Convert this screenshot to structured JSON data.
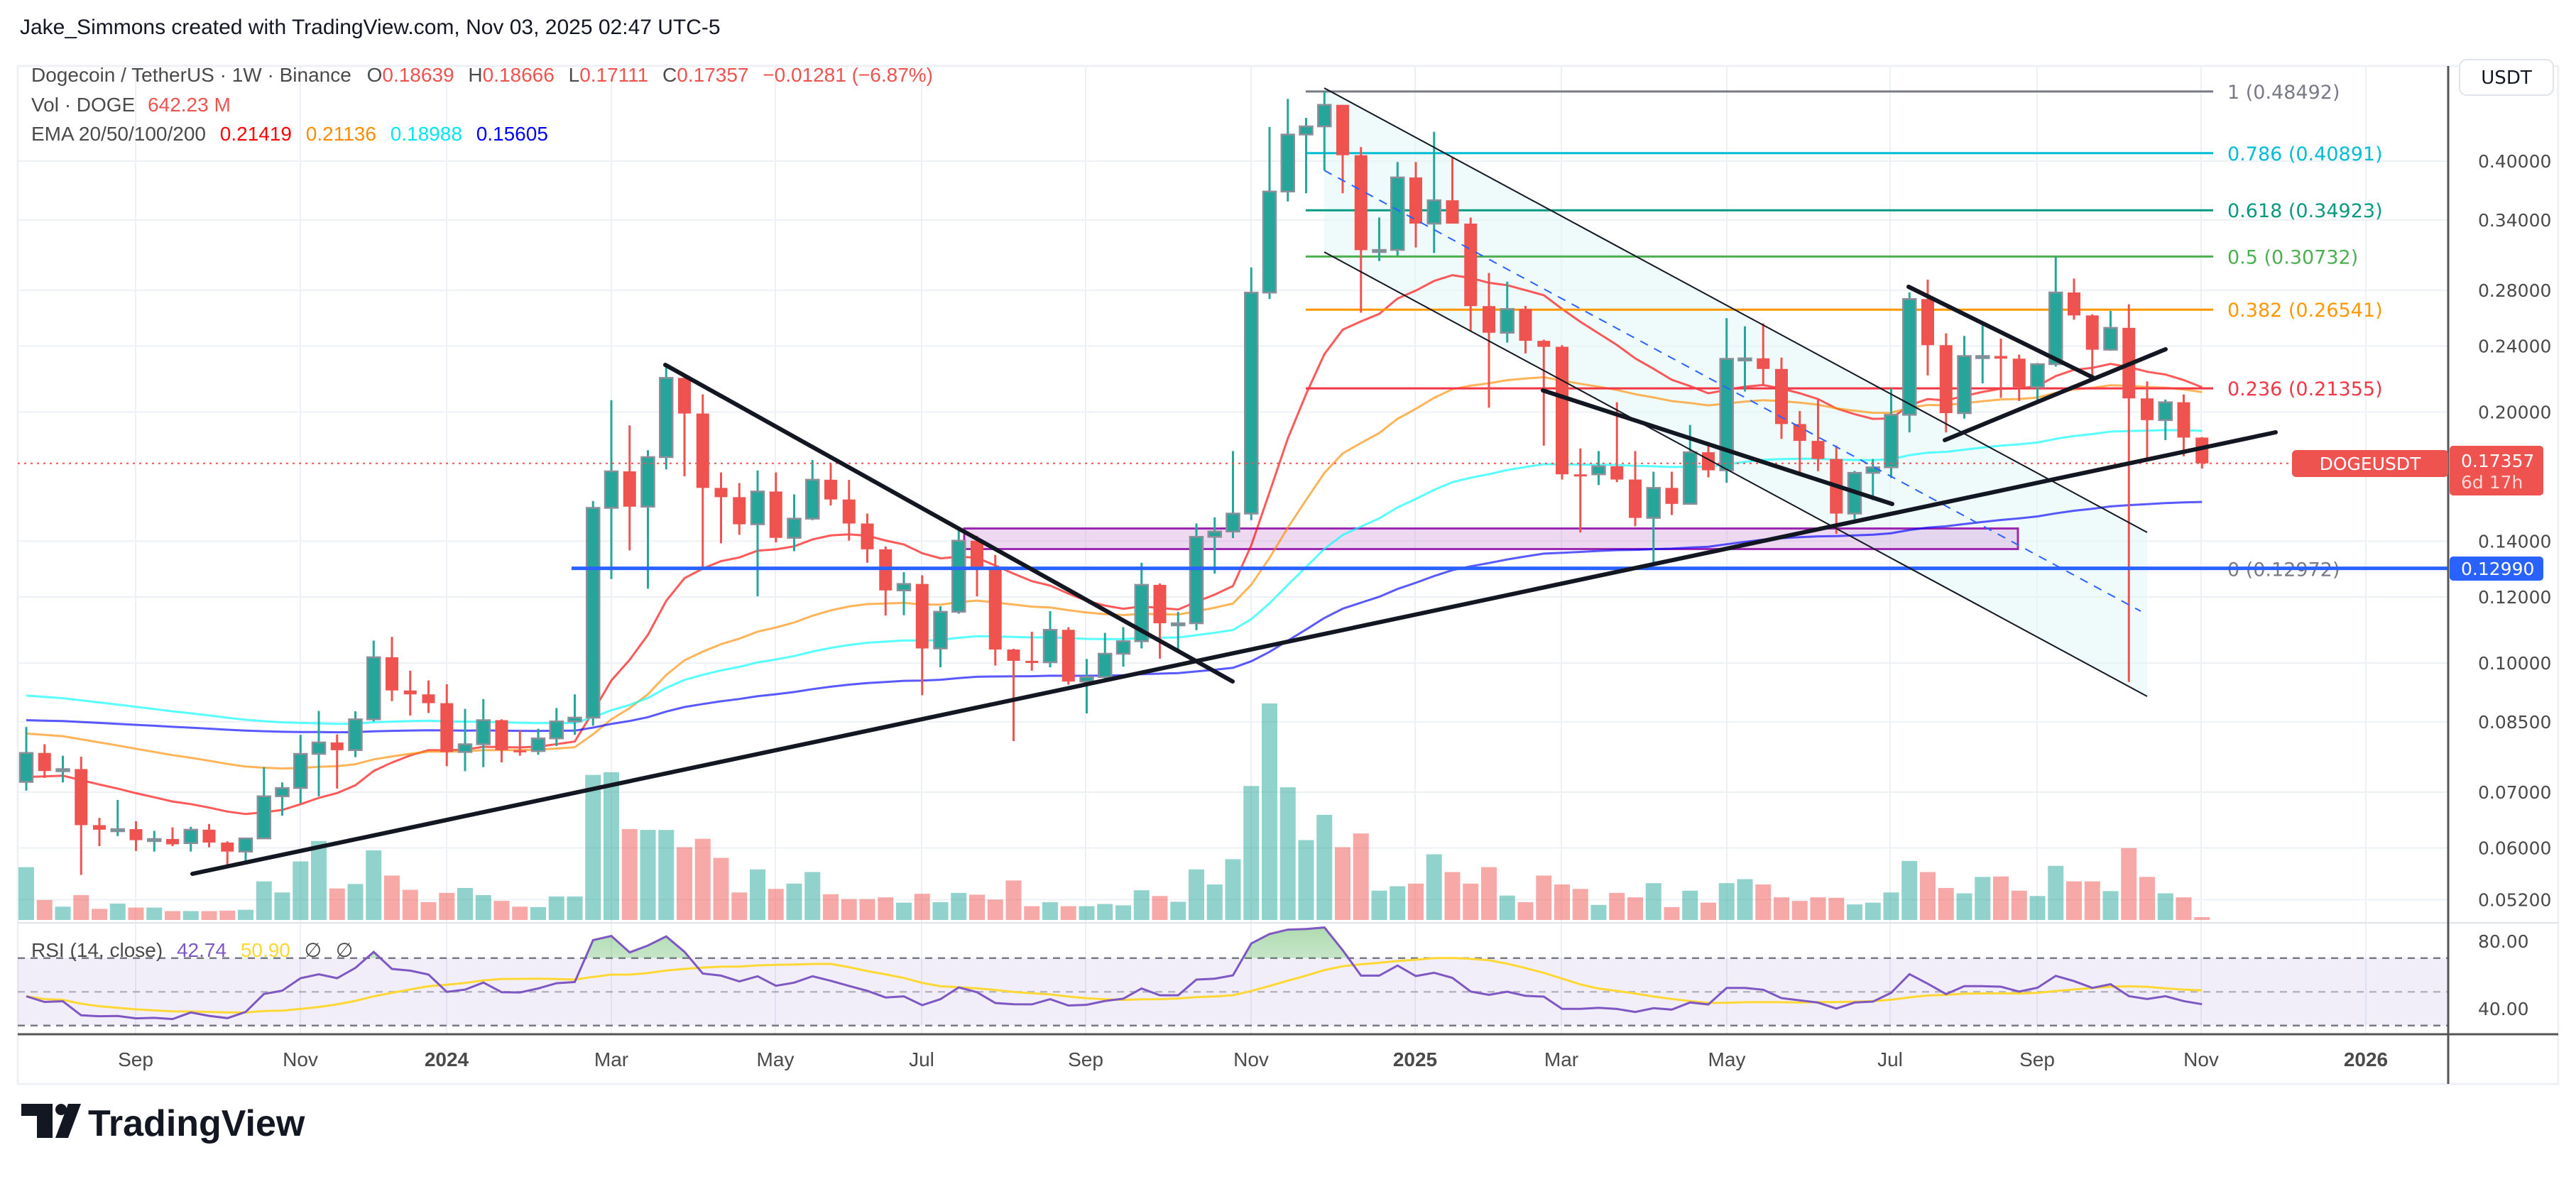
{
  "header": {
    "title": "Jake_Simmons created with TradingView.com, Nov 03, 2025 02:47 UTC-5"
  },
  "legend": {
    "symbol": "Dogecoin / TetherUS · 1W · Binance",
    "o_label": "O",
    "o": "0.18639",
    "h_label": "H",
    "h": "0.18666",
    "l_label": "L",
    "l": "0.17111",
    "c_label": "C",
    "c": "0.17357",
    "change": "−0.01281 (−6.87%)",
    "vol_label": "Vol · DOGE",
    "vol": "642.23 M",
    "ema_label": "EMA 20/50/100/200",
    "ema20": "0.21419",
    "ema50": "0.21136",
    "ema100": "0.18988",
    "ema200": "0.15605",
    "rsi_label": "RSI (14, close)",
    "rsi": "42.74",
    "rsi_ma": "50.90",
    "rsi_na1": "∅",
    "rsi_na2": "∅"
  },
  "price_axis": {
    "currency_button": "USDT",
    "ticks": [
      "0.40000",
      "0.34000",
      "0.28000",
      "0.24000",
      "0.20000",
      "0.14000",
      "0.12000",
      "0.10000",
      "0.08500",
      "0.07000",
      "0.06000",
      "0.05200"
    ],
    "current_symbol_tag": "DOGEUSDT",
    "current_price": "0.17357",
    "countdown": "6d 17h",
    "hline_price": "0.12990",
    "rsi_ticks": [
      "80.00",
      "40.00"
    ]
  },
  "time_axis": {
    "labels": [
      "Sep",
      "Nov",
      "2024",
      "Mar",
      "May",
      "Jul",
      "Sep",
      "Nov",
      "2025",
      "Mar",
      "May",
      "Jul",
      "Sep",
      "Nov",
      "2026"
    ],
    "bold": [
      false,
      false,
      true,
      false,
      false,
      false,
      false,
      false,
      true,
      false,
      false,
      false,
      false,
      false,
      true
    ]
  },
  "fib_levels": [
    {
      "label": "1 (0.48492)",
      "price": 0.48492,
      "color": "#787b86"
    },
    {
      "label": "0.786 (0.40891)",
      "price": 0.40891,
      "color": "#00bcd4"
    },
    {
      "label": "0.618 (0.34923)",
      "price": 0.34923,
      "color": "#089981"
    },
    {
      "label": "0.5 (0.30732)",
      "price": 0.30732,
      "color": "#4caf50"
    },
    {
      "label": "0.382 (0.26541)",
      "price": 0.26541,
      "color": "#ff9800"
    },
    {
      "label": "0.236 (0.21355)",
      "price": 0.21355,
      "color": "#f23645"
    },
    {
      "label": "0 (0.12972)",
      "price": 0.12972,
      "color": "#787b86"
    }
  ],
  "colors": {
    "up": "#26a69a",
    "down": "#ef5350",
    "ema20": "#ff0000",
    "ema50": "#ff8c00",
    "ema100": "#00ffff",
    "ema200": "#0000ff",
    "rsi": "#7e57c2",
    "rsi_ma": "#fdd835",
    "hline": "#2962ff",
    "zone": "#9c27b0"
  },
  "chart_data": {
    "type": "candlestick",
    "interval": "1W",
    "y_scale": "log",
    "ylim": [
      0.05,
      0.5
    ],
    "grid": true,
    "candles_ohlc": [
      [
        0.072,
        0.0838,
        0.0703,
        0.078
      ],
      [
        0.078,
        0.0799,
        0.0728,
        0.0742
      ],
      [
        0.0742,
        0.0774,
        0.0719,
        0.0746
      ],
      [
        0.0746,
        0.0772,
        0.0557,
        0.0639
      ],
      [
        0.0639,
        0.0652,
        0.0603,
        0.0631
      ],
      [
        0.0631,
        0.0685,
        0.062,
        0.0632
      ],
      [
        0.0632,
        0.0646,
        0.0595,
        0.0613
      ],
      [
        0.0613,
        0.0629,
        0.0594,
        0.0615
      ],
      [
        0.0615,
        0.0635,
        0.0603,
        0.0606
      ],
      [
        0.0608,
        0.0636,
        0.0594,
        0.0631
      ],
      [
        0.0631,
        0.0641,
        0.0601,
        0.0609
      ],
      [
        0.0609,
        0.0611,
        0.0569,
        0.0594
      ],
      [
        0.0594,
        0.0617,
        0.0575,
        0.0616
      ],
      [
        0.0616,
        0.075,
        0.0615,
        0.0692
      ],
      [
        0.0692,
        0.0719,
        0.0656,
        0.0708
      ],
      [
        0.0708,
        0.082,
        0.0679,
        0.0778
      ],
      [
        0.0778,
        0.0876,
        0.0692,
        0.0803
      ],
      [
        0.0803,
        0.0821,
        0.0707,
        0.0786
      ],
      [
        0.0786,
        0.0875,
        0.0771,
        0.0856
      ],
      [
        0.0856,
        0.1064,
        0.0851,
        0.1016
      ],
      [
        0.1016,
        0.1075,
        0.09,
        0.0927
      ],
      [
        0.0927,
        0.0979,
        0.0865,
        0.0917
      ],
      [
        0.0917,
        0.0953,
        0.0871,
        0.0895
      ],
      [
        0.0895,
        0.0943,
        0.0752,
        0.0782
      ],
      [
        0.0782,
        0.0881,
        0.0742,
        0.0799
      ],
      [
        0.0799,
        0.0905,
        0.075,
        0.0854
      ],
      [
        0.0854,
        0.0856,
        0.076,
        0.0786
      ],
      [
        0.0786,
        0.083,
        0.0774,
        0.0784
      ],
      [
        0.0784,
        0.0834,
        0.0776,
        0.0812
      ],
      [
        0.0812,
        0.0883,
        0.0795,
        0.0851
      ],
      [
        0.0851,
        0.0917,
        0.082,
        0.086
      ],
      [
        0.086,
        0.1564,
        0.0841,
        0.1535
      ],
      [
        0.1535,
        0.2067,
        0.1261,
        0.1698
      ],
      [
        0.1698,
        0.1928,
        0.1365,
        0.154
      ],
      [
        0.154,
        0.18,
        0.1228,
        0.1766
      ],
      [
        0.1766,
        0.2286,
        0.1707,
        0.2198
      ],
      [
        0.2198,
        0.2198,
        0.1675,
        0.1992
      ],
      [
        0.1992,
        0.21,
        0.1301,
        0.1622
      ],
      [
        0.1622,
        0.1693,
        0.1392,
        0.1581
      ],
      [
        0.1581,
        0.1644,
        0.1425,
        0.1467
      ],
      [
        0.1467,
        0.1702,
        0.1202,
        0.1606
      ],
      [
        0.1606,
        0.1693,
        0.1395,
        0.1413
      ],
      [
        0.1413,
        0.1593,
        0.1362,
        0.149
      ],
      [
        0.149,
        0.1752,
        0.1484,
        0.1659
      ],
      [
        0.1659,
        0.1733,
        0.1545,
        0.1571
      ],
      [
        0.1571,
        0.1658,
        0.1402,
        0.147
      ],
      [
        0.147,
        0.1511,
        0.1319,
        0.1369
      ],
      [
        0.1369,
        0.138,
        0.114,
        0.1222
      ],
      [
        0.1222,
        0.1285,
        0.1141,
        0.1244
      ],
      [
        0.1244,
        0.1274,
        0.0915,
        0.1041
      ],
      [
        0.1041,
        0.117,
        0.0988,
        0.1152
      ],
      [
        0.1152,
        0.1443,
        0.1146,
        0.1402
      ],
      [
        0.1402,
        0.1421,
        0.1202,
        0.1299
      ],
      [
        0.1299,
        0.1348,
        0.0993,
        0.1038
      ],
      [
        0.1038,
        0.104,
        0.0806,
        0.1006
      ],
      [
        0.1006,
        0.109,
        0.0979,
        0.1002
      ],
      [
        0.1002,
        0.1154,
        0.0988,
        0.1096
      ],
      [
        0.1096,
        0.1104,
        0.0942,
        0.095
      ],
      [
        0.095,
        0.1011,
        0.087,
        0.0962
      ],
      [
        0.0962,
        0.1087,
        0.0957,
        0.1026
      ],
      [
        0.1026,
        0.1104,
        0.099,
        0.1062
      ],
      [
        0.1062,
        0.1319,
        0.1041,
        0.1241
      ],
      [
        0.1241,
        0.1246,
        0.1012,
        0.1116
      ],
      [
        0.1116,
        0.1152,
        0.1033,
        0.1116
      ],
      [
        0.1116,
        0.147,
        0.1095,
        0.1417
      ],
      [
        0.1417,
        0.1495,
        0.128,
        0.1438
      ],
      [
        0.1438,
        0.1796,
        0.1412,
        0.1511
      ],
      [
        0.1511,
        0.2982,
        0.1484,
        0.2782
      ],
      [
        0.2782,
        0.4396,
        0.2733,
        0.3678
      ],
      [
        0.3678,
        0.475,
        0.3578,
        0.4305
      ],
      [
        0.4305,
        0.4507,
        0.366,
        0.4403
      ],
      [
        0.4403,
        0.48492,
        0.39,
        0.4673
      ],
      [
        0.4673,
        0.4673,
        0.366,
        0.4066
      ],
      [
        0.4066,
        0.4159,
        0.2632,
        0.3128
      ],
      [
        0.3128,
        0.3423,
        0.3035,
        0.313
      ],
      [
        0.313,
        0.399,
        0.3081,
        0.3824
      ],
      [
        0.3824,
        0.399,
        0.3151,
        0.3366
      ],
      [
        0.3366,
        0.4338,
        0.3104,
        0.359
      ],
      [
        0.359,
        0.4048,
        0.3366,
        0.3366
      ],
      [
        0.3366,
        0.3423,
        0.2505,
        0.268
      ],
      [
        0.268,
        0.2937,
        0.2024,
        0.249
      ],
      [
        0.249,
        0.2867,
        0.2424,
        0.2659
      ],
      [
        0.2659,
        0.2681,
        0.2352,
        0.2435
      ],
      [
        0.2435,
        0.2442,
        0.1823,
        0.2395
      ],
      [
        0.2395,
        0.2406,
        0.166,
        0.1684
      ],
      [
        0.1684,
        0.1809,
        0.1434,
        0.168
      ],
      [
        0.1684,
        0.1796,
        0.1635,
        0.1722
      ],
      [
        0.1722,
        0.2055,
        0.1648,
        0.166
      ],
      [
        0.166,
        0.1796,
        0.1459,
        0.1493
      ],
      [
        0.1493,
        0.1696,
        0.1306,
        0.1622
      ],
      [
        0.1622,
        0.1696,
        0.1505,
        0.1552
      ],
      [
        0.1552,
        0.193,
        0.1552,
        0.179
      ],
      [
        0.179,
        0.1842,
        0.167,
        0.1703
      ],
      [
        0.1703,
        0.2593,
        0.1645,
        0.2317
      ],
      [
        0.2317,
        0.2535,
        0.2117,
        0.232
      ],
      [
        0.232,
        0.2555,
        0.2149,
        0.2253
      ],
      [
        0.2253,
        0.2325,
        0.1857,
        0.1935
      ],
      [
        0.1935,
        0.2006,
        0.1684,
        0.1847
      ],
      [
        0.1847,
        0.207,
        0.1699,
        0.1757
      ],
      [
        0.1757,
        0.1823,
        0.1429,
        0.1511
      ],
      [
        0.1511,
        0.17,
        0.1488,
        0.1691
      ],
      [
        0.1691,
        0.1757,
        0.1568,
        0.1717
      ],
      [
        0.1717,
        0.2134,
        0.1667,
        0.1985
      ],
      [
        0.1985,
        0.2783,
        0.1891,
        0.2733
      ],
      [
        0.2733,
        0.2883,
        0.2213,
        0.2406
      ],
      [
        0.2406,
        0.2486,
        0.1891,
        0.1994
      ],
      [
        0.1994,
        0.2468,
        0.1964,
        0.2335
      ],
      [
        0.2335,
        0.2555,
        0.2165,
        0.2335
      ],
      [
        0.2335,
        0.245,
        0.208,
        0.2318
      ],
      [
        0.2318,
        0.2344,
        0.2062,
        0.2143
      ],
      [
        0.2143,
        0.229,
        0.2055,
        0.2283
      ],
      [
        0.2283,
        0.3072,
        0.2268,
        0.2783
      ],
      [
        0.2783,
        0.2892,
        0.2581,
        0.2612
      ],
      [
        0.2612,
        0.262,
        0.2213,
        0.2376
      ],
      [
        0.2376,
        0.2645,
        0.2369,
        0.2524
      ],
      [
        0.2524,
        0.2694,
        0.0949,
        0.2077
      ],
      [
        0.2077,
        0.2177,
        0.1757,
        0.1956
      ],
      [
        0.1956,
        0.207,
        0.1851,
        0.2055
      ],
      [
        0.2055,
        0.21,
        0.177,
        0.18639
      ],
      [
        0.18639,
        0.18666,
        0.17111,
        0.17357
      ]
    ],
    "volume_billions_doge": [
      11.9,
      4.5,
      3.0,
      5.6,
      2.5,
      3.7,
      2.8,
      2.8,
      2.0,
      2.0,
      2.0,
      2.1,
      2.3,
      8.7,
      6.2,
      13.2,
      17.8,
      7.1,
      8.1,
      15.7,
      10.0,
      6.8,
      4.0,
      6.1,
      7.2,
      5.6,
      4.3,
      3.0,
      2.9,
      5.3,
      5.3,
      32.7,
      33.3,
      20.5,
      20.3,
      20.3,
      16.4,
      18.3,
      14.0,
      6.2,
      11.4,
      7.0,
      8.2,
      10.8,
      5.8,
      4.7,
      4.7,
      5.1,
      3.9,
      5.9,
      4.0,
      6.1,
      5.7,
      4.6,
      8.9,
      3.1,
      4.0,
      3.1,
      3.1,
      3.6,
      3.3,
      6.7,
      5.4,
      4.1,
      11.4,
      8.0,
      13.7,
      30.2,
      48.8,
      29.9,
      18.0,
      23.7,
      16.4,
      19.5,
      6.6,
      7.6,
      8.2,
      14.8,
      10.8,
      8.2,
      11.9,
      5.5,
      4.0,
      10.0,
      8.0,
      7.0,
      3.4,
      6.1,
      5.1,
      8.3,
      2.9,
      6.6,
      3.9,
      8.3,
      9.2,
      8.0,
      5.1,
      4.3,
      5.1,
      5.0,
      3.5,
      3.9,
      6.2,
      13.3,
      10.8,
      7.2,
      6.0,
      9.7,
      9.8,
      6.6,
      5.4,
      12.2,
      8.7,
      8.7,
      6.5,
      16.2,
      9.7,
      6.0,
      5.1,
      0.64
    ],
    "ema_start": {
      "ema20": 0.073,
      "ema50": 0.0823,
      "ema100": 0.0914,
      "ema200": 0.0854
    },
    "horizontal_line": 0.1299,
    "zone": [
      0.137,
      0.145
    ],
    "rsi_levels": [
      70,
      50,
      30
    ]
  },
  "branding": {
    "logo_text": "TradingView"
  }
}
